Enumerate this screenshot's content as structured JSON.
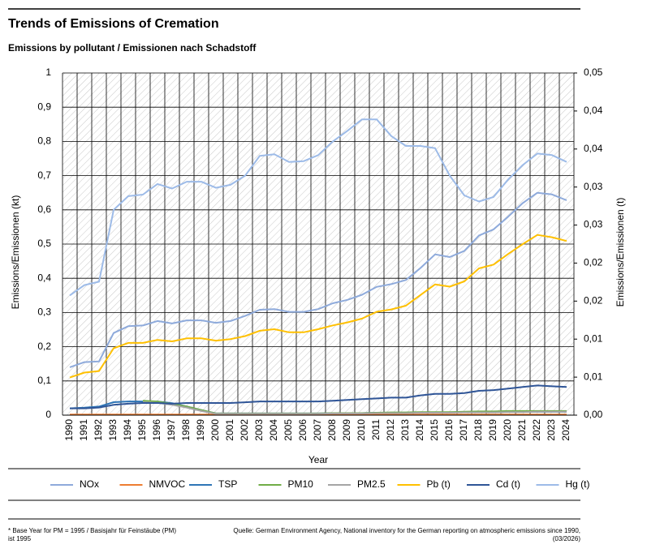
{
  "chart_data": {
    "type": "line",
    "title": "Trends of Emissions of Cremation",
    "subtitle": "Emissions by pollutant / Emissionen nach Schadstoff",
    "y_label": "Emissions/Emissionen (kt)",
    "y2_label": "Emissions/Emissionen (t)",
    "x_label": "Year",
    "footnote": "* Base Year for PM = 1995 / Basisjahr für Feinstäube (PM) ist 1995",
    "source": "Quelle: German Environment Agency, National inventory for the German reporting on atmospheric emissions since 1990, (03/2026)",
    "categories": [
      "1990",
      "1991",
      "1992",
      "1993",
      "1994",
      "1995",
      "1996",
      "1997",
      "1998",
      "1999",
      "2000",
      "2001",
      "2002",
      "2003",
      "2004",
      "2005",
      "2006",
      "2007",
      "2008",
      "2009",
      "2010",
      "2011",
      "2012",
      "2013",
      "2014",
      "2015",
      "2016",
      "2017",
      "2018",
      "2019",
      "2020",
      "2021",
      "2022",
      "2023",
      "2024"
    ],
    "ylim": [
      0,
      1
    ],
    "yticks": [
      0,
      {
        "value": 0.1,
        "label": "0,1"
      },
      {
        "value": 0.2,
        "label": "0,2"
      },
      {
        "value": 0.3,
        "label": "0,3"
      },
      {
        "value": 0.4,
        "label": "0,4"
      },
      {
        "value": 0.5,
        "label": "0,5"
      },
      {
        "value": 0.6,
        "label": "0,6"
      },
      {
        "value": 0.7,
        "label": "0,7"
      },
      {
        "value": 0.8,
        "label": "0,8"
      },
      {
        "value": 0.9,
        "label": "0,9"
      },
      1
    ],
    "y2lim": [
      0,
      0.045
    ],
    "y2ticks": [
      {
        "value": 0,
        "label": "0,00"
      },
      {
        "value": 0.005,
        "label": "0,01"
      },
      {
        "value": 0.01,
        "label": "0,01"
      },
      {
        "value": 0.015,
        "label": "0,02"
      },
      {
        "value": 0.02,
        "label": "0,02"
      },
      {
        "value": 0.025,
        "label": "0,03"
      },
      {
        "value": 0.03,
        "label": "0,03"
      },
      {
        "value": 0.035,
        "label": "0,04"
      },
      {
        "value": 0.04,
        "label": "0,04"
      },
      {
        "value": 0.045,
        "label": "0,05"
      }
    ],
    "grid": true,
    "legend": "bottom",
    "series": [
      {
        "name": "NOx",
        "color": "#8eaadb",
        "values": [
          0.14,
          0.155,
          0.157,
          0.24,
          0.26,
          0.262,
          0.275,
          0.268,
          0.277,
          0.277,
          0.27,
          0.275,
          0.29,
          0.308,
          0.31,
          0.302,
          0.302,
          0.31,
          0.327,
          0.337,
          0.352,
          0.375,
          0.383,
          0.395,
          0.43,
          0.47,
          0.462,
          0.48,
          0.525,
          0.543,
          0.58,
          0.62,
          0.65,
          0.645,
          0.628
        ]
      },
      {
        "name": "NMVOC",
        "color": "#ed7d31",
        "values": [
          0.002,
          0.002,
          0.002,
          0.002,
          0.002,
          0.002,
          0.002,
          0.002,
          0.002,
          0.002,
          0.002,
          0.002,
          0.002,
          0.002,
          0.002,
          0.002,
          0.002,
          0.002,
          0.002,
          0.002,
          0.002,
          0.002,
          0.002,
          0.002,
          0.002,
          0.002,
          0.002,
          0.002,
          0.002,
          0.002,
          0.002,
          0.002,
          0.002,
          0.002,
          0.002
        ]
      },
      {
        "name": "TSP",
        "color": "#2e75b6",
        "values": [
          0.02,
          0.022,
          0.025,
          0.038,
          0.04,
          0.04,
          0.04,
          0.035,
          0.025,
          0.015,
          0.005,
          0.005,
          0.005,
          0.005,
          0.005,
          0.005,
          0.005,
          0.005,
          0.006,
          0.006,
          0.006,
          0.007,
          0.007,
          0.007,
          0.008,
          0.008,
          0.008,
          0.009,
          0.009,
          0.009,
          0.01,
          0.01,
          0.01,
          0.01,
          0.01
        ]
      },
      {
        "name": "PM10",
        "color": "#70ad47",
        "values": [
          null,
          null,
          null,
          null,
          null,
          0.042,
          0.04,
          0.033,
          0.025,
          0.015,
          0.005,
          0.005,
          0.005,
          0.005,
          0.005,
          0.005,
          0.005,
          0.005,
          0.006,
          0.006,
          0.006,
          0.007,
          0.008,
          0.008,
          0.009,
          0.009,
          0.009,
          0.01,
          0.011,
          0.011,
          0.012,
          0.012,
          0.012,
          0.012,
          0.012
        ]
      },
      {
        "name": "PM2.5",
        "color": "#a5a5a5",
        "values": [
          null,
          null,
          null,
          null,
          null,
          0.038,
          0.036,
          0.03,
          0.022,
          0.012,
          0.004,
          0.004,
          0.004,
          0.004,
          0.004,
          0.004,
          0.004,
          0.004,
          0.005,
          0.005,
          0.005,
          0.006,
          0.006,
          0.006,
          0.007,
          0.007,
          0.007,
          0.008,
          0.008,
          0.008,
          0.009,
          0.009,
          0.01,
          0.01,
          0.01
        ]
      },
      {
        "name": "Pb (t)",
        "color": "#ffc000",
        "axis": "y2",
        "values": [
          0.00495,
          0.0056,
          0.0058,
          0.0088,
          0.0095,
          0.0095,
          0.0099,
          0.0097,
          0.0101,
          0.0101,
          0.0098,
          0.01,
          0.0104,
          0.0111,
          0.0113,
          0.0109,
          0.0109,
          0.0113,
          0.0118,
          0.0122,
          0.0127,
          0.0136,
          0.0139,
          0.0144,
          0.0158,
          0.0172,
          0.0169,
          0.0176,
          0.0193,
          0.0198,
          0.0212,
          0.0225,
          0.0237,
          0.0234,
          0.0229
        ]
      },
      {
        "name": "Cd (t)",
        "color": "#2f5597",
        "axis": "y2",
        "values": [
          0.0009,
          0.0009,
          0.001,
          0.00135,
          0.0015,
          0.0016,
          0.0016,
          0.0015,
          0.0016,
          0.0016,
          0.0016,
          0.0016,
          0.0017,
          0.0018,
          0.0018,
          0.0018,
          0.0018,
          0.0018,
          0.0019,
          0.002,
          0.0021,
          0.0022,
          0.0023,
          0.0023,
          0.0026,
          0.0028,
          0.0028,
          0.0029,
          0.0032,
          0.0033,
          0.0035,
          0.0037,
          0.0039,
          0.0038,
          0.0037
        ]
      },
      {
        "name": "Hg (t)",
        "color": "#9dbbe8",
        "axis": "y2",
        "values": [
          0.01575,
          0.0171,
          0.01755,
          0.027,
          0.0288,
          0.029,
          0.0304,
          0.0298,
          0.0307,
          0.0307,
          0.0299,
          0.0303,
          0.0315,
          0.0341,
          0.0343,
          0.0333,
          0.0334,
          0.0342,
          0.036,
          0.0374,
          0.0389,
          0.0389,
          0.0367,
          0.0354,
          0.0354,
          0.0351,
          0.0315,
          0.0289,
          0.0281,
          0.0287,
          0.031,
          0.0329,
          0.0344,
          0.0342,
          0.0333
        ]
      }
    ]
  }
}
